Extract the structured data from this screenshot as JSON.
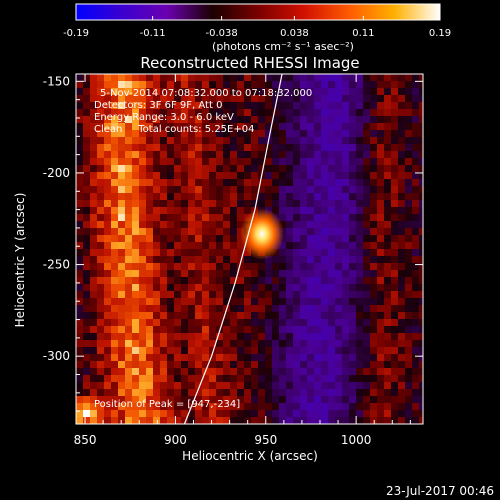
{
  "colorbar": {
    "tick_labels": [
      "-0.19",
      "-0.11",
      "-0.038",
      "0.038",
      "0.11",
      "0.19"
    ],
    "ticks": [
      -0.19,
      -0.11,
      -0.038,
      0.038,
      0.11,
      0.19
    ],
    "range": [
      -0.19,
      0.19
    ],
    "unit_label": "(photons cm⁻² s⁻¹ asec⁻²)",
    "colormap": [
      "#0000ff",
      "#3a00d0",
      "#6a00b0",
      "#1a0000",
      "#7a0000",
      "#d01000",
      "#ff5a00",
      "#ffb000",
      "#ffffff"
    ]
  },
  "title": "Reconstructed RHESSI Image",
  "info": {
    "line1": "5-Nov-2014 07:08:32.000 to 07:18:32.000",
    "line2": "Detectors: 3F 6F 9F, Att 0",
    "line3": "Energy Range: 3.0 - 6.0 keV",
    "line4": "Clean     Total counts: 5.25E+04"
  },
  "peak_label": "Position of Peak = [947,-234]",
  "chart_data": {
    "type": "heatmap",
    "title": "Reconstructed RHESSI Image",
    "xlabel": "Heliocentric X (arcsec)",
    "ylabel": "Heliocentric Y (arcsec)",
    "xlim": [
      845,
      1037
    ],
    "ylim": [
      -337,
      -146
    ],
    "x_ticks": [
      850,
      900,
      950,
      1000
    ],
    "y_ticks": [
      -300,
      -250,
      -200,
      -150
    ],
    "x_tick_labels": [
      "850",
      "900",
      "950",
      "1000"
    ],
    "y_tick_labels": [
      "-300",
      "-250",
      "-200",
      "-150"
    ],
    "peak": {
      "x": 947,
      "y": -234
    },
    "limb_curve": [
      [
        905,
        -337
      ],
      [
        920,
        -300
      ],
      [
        933,
        -260
      ],
      [
        944,
        -220
      ],
      [
        952,
        -180
      ],
      [
        959,
        -146
      ]
    ]
  },
  "footer_timestamp": "23-Jul-2017 00:46"
}
